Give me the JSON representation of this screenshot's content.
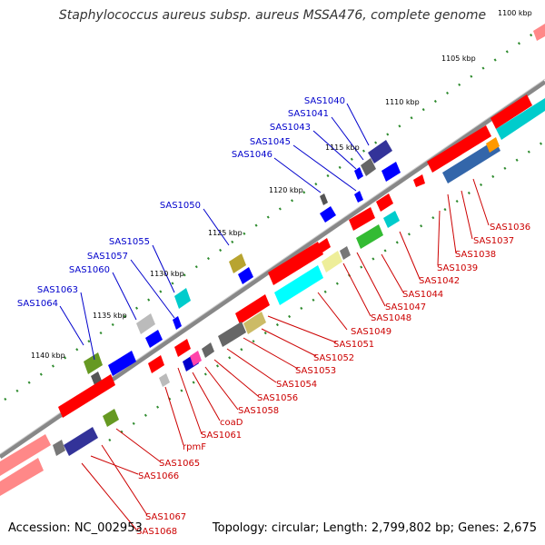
{
  "title": "Staphylococcus aureus subsp. aureus MSSA476, complete genome",
  "footer": {
    "accession": "Accession: NC_002953",
    "summary": "Topology: circular; Length: 2,799,802 bp; Genes: 2,675"
  },
  "colors": {
    "backbone": "#7a7a7a",
    "forward_label": "#0000cc",
    "reverse_label": "#cc0000",
    "tick": "#2e8b2e",
    "gene_red": "#ff0000",
    "gene_blue": "#0000ff",
    "gene_cyan": "#00ffff",
    "gene_navy": "#333399",
    "gene_gray": "#777777",
    "gene_green": "#33bb33",
    "gene_olive": "#8a9a2a",
    "gene_khaki": "#ccbb66",
    "gene_steel": "#3366aa",
    "gene_pink": "#ff88aa",
    "gene_orange": "#ff9900"
  },
  "ruler_labels": [
    "1100 kbp",
    "1105 kbp",
    "1110 kbp",
    "1115 kbp",
    "1120 kbp",
    "1125 kbp",
    "1130 kbp",
    "1135 kbp",
    "1140 kbp"
  ],
  "forward_labels": [
    "SAS1040",
    "SAS1041",
    "SAS1043",
    "SAS1045",
    "SAS1046",
    "SAS1050",
    "SAS1055",
    "SAS1057",
    "SAS1060",
    "SAS1063",
    "SAS1064"
  ],
  "reverse_labels": [
    "SAS1036",
    "SAS1037",
    "SAS1038",
    "SAS1039",
    "SAS1042",
    "SAS1044",
    "SAS1047",
    "SAS1048",
    "SAS1049",
    "SAS1051",
    "SAS1052",
    "SAS1053",
    "SAS1054",
    "SAS1056",
    "SAS1058",
    "coaD",
    "SAS1061",
    "rpmF",
    "SAS1065",
    "SAS1066",
    "SAS1067",
    "SAS1068"
  ]
}
